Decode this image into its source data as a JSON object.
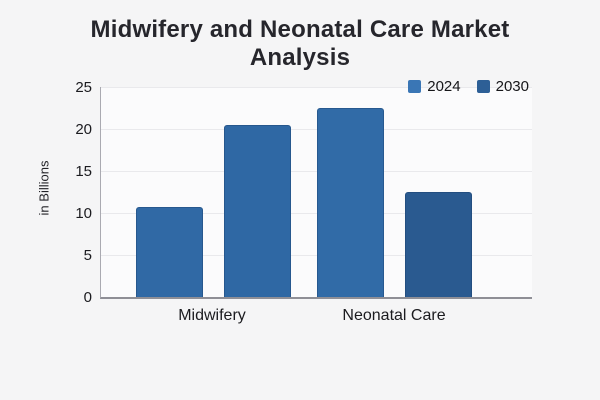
{
  "page": {
    "background": "#f5f5f6"
  },
  "chart_data": {
    "type": "bar",
    "title": "Midwifery and Neonatal Care Market Analysis",
    "title_lines": [
      "Midwifery and Neonatal Care Market",
      "Analysis"
    ],
    "categories": [
      "Midwifery",
      "Neonatal Care"
    ],
    "series": [
      {
        "name": "2024",
        "legend_color": "#3a76b5",
        "values": [
          10.7,
          22.5
        ],
        "bar_colors": [
          "#3069a5",
          "#316ba7"
        ]
      },
      {
        "name": "2030",
        "legend_color": "#2d5f96",
        "values": [
          20.5,
          12.5
        ],
        "bar_colors": [
          "#2f68a4",
          "#2a5a90"
        ]
      }
    ],
    "xlabel": "",
    "ylabel": "in Billions",
    "ylim": [
      0,
      25
    ],
    "yticks": [
      0,
      5,
      10,
      15,
      20,
      25
    ],
    "grid": true,
    "legend_position": "top-right",
    "plot_background": "#fbfbfc",
    "gridline_color": "#e9e9ec",
    "axis_color": "#8f8f96",
    "title_color": "#26262c",
    "tick_label_color": "#1b1b1f"
  }
}
